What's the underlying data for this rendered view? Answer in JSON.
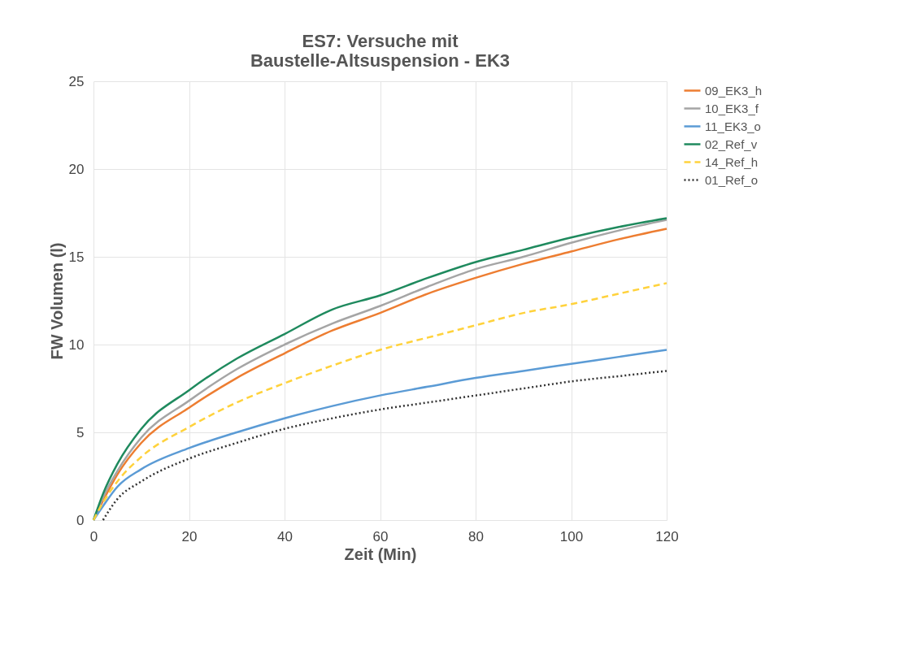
{
  "chart_data": {
    "type": "line",
    "title": "ES7: Versuche mit\nBaustelle-Altsuspension - EK3",
    "xlabel": "Zeit (Min)",
    "ylabel": "FW Volumen  (l)",
    "x": [
      0,
      2,
      5,
      10,
      20,
      30,
      40,
      50,
      60,
      70,
      80,
      90,
      100,
      110,
      120
    ],
    "series": [
      {
        "name": "09_EK3_h",
        "color": "#ed7d31",
        "line_style": "solid",
        "values": [
          0,
          1.1,
          2.6,
          4.4,
          6.4,
          8.1,
          9.5,
          10.8,
          11.8,
          12.9,
          13.8,
          14.6,
          15.3,
          16.0,
          16.6
        ]
      },
      {
        "name": "10_EK3_f",
        "color": "#a5a5a5",
        "line_style": "solid",
        "values": [
          0,
          1.3,
          2.8,
          4.7,
          6.8,
          8.6,
          10.0,
          11.2,
          12.2,
          13.3,
          14.3,
          15.0,
          15.8,
          16.5,
          17.1
        ]
      },
      {
        "name": "11_EK3_o",
        "color": "#5b9bd5",
        "line_style": "solid",
        "values": [
          0,
          0.8,
          1.9,
          2.9,
          4.1,
          5.0,
          5.8,
          6.5,
          7.1,
          7.6,
          8.1,
          8.5,
          8.9,
          9.3,
          9.7
        ]
      },
      {
        "name": "02_Ref_v",
        "color": "#1f8a5e",
        "line_style": "solid",
        "values": [
          0,
          1.5,
          3.2,
          5.2,
          7.4,
          9.2,
          10.6,
          12.0,
          12.8,
          13.8,
          14.7,
          15.4,
          16.1,
          16.7,
          17.2
        ]
      },
      {
        "name": "14_Ref_h",
        "color": "#ffd23c",
        "line_style": "dashed",
        "values": [
          0,
          1.0,
          2.2,
          3.6,
          5.3,
          6.7,
          7.8,
          8.8,
          9.7,
          10.4,
          11.1,
          11.8,
          12.3,
          12.9,
          13.5
        ]
      },
      {
        "name": "01_Ref_o",
        "color": "#333333",
        "line_style": "dotted",
        "x": [
          2,
          5,
          10,
          20,
          30,
          40,
          50,
          60,
          70,
          80,
          90,
          100,
          110,
          120
        ],
        "values": [
          0,
          1.2,
          2.2,
          3.5,
          4.4,
          5.2,
          5.8,
          6.3,
          6.7,
          7.1,
          7.5,
          7.9,
          8.2,
          8.5
        ]
      }
    ],
    "xlim": [
      0,
      120
    ],
    "xticks": [
      0,
      20,
      40,
      60,
      80,
      100,
      120
    ],
    "ylim": [
      0,
      25
    ],
    "yticks": [
      0,
      5,
      10,
      15,
      20,
      25
    ],
    "grid": true,
    "legend": "right",
    "marker": "none"
  }
}
